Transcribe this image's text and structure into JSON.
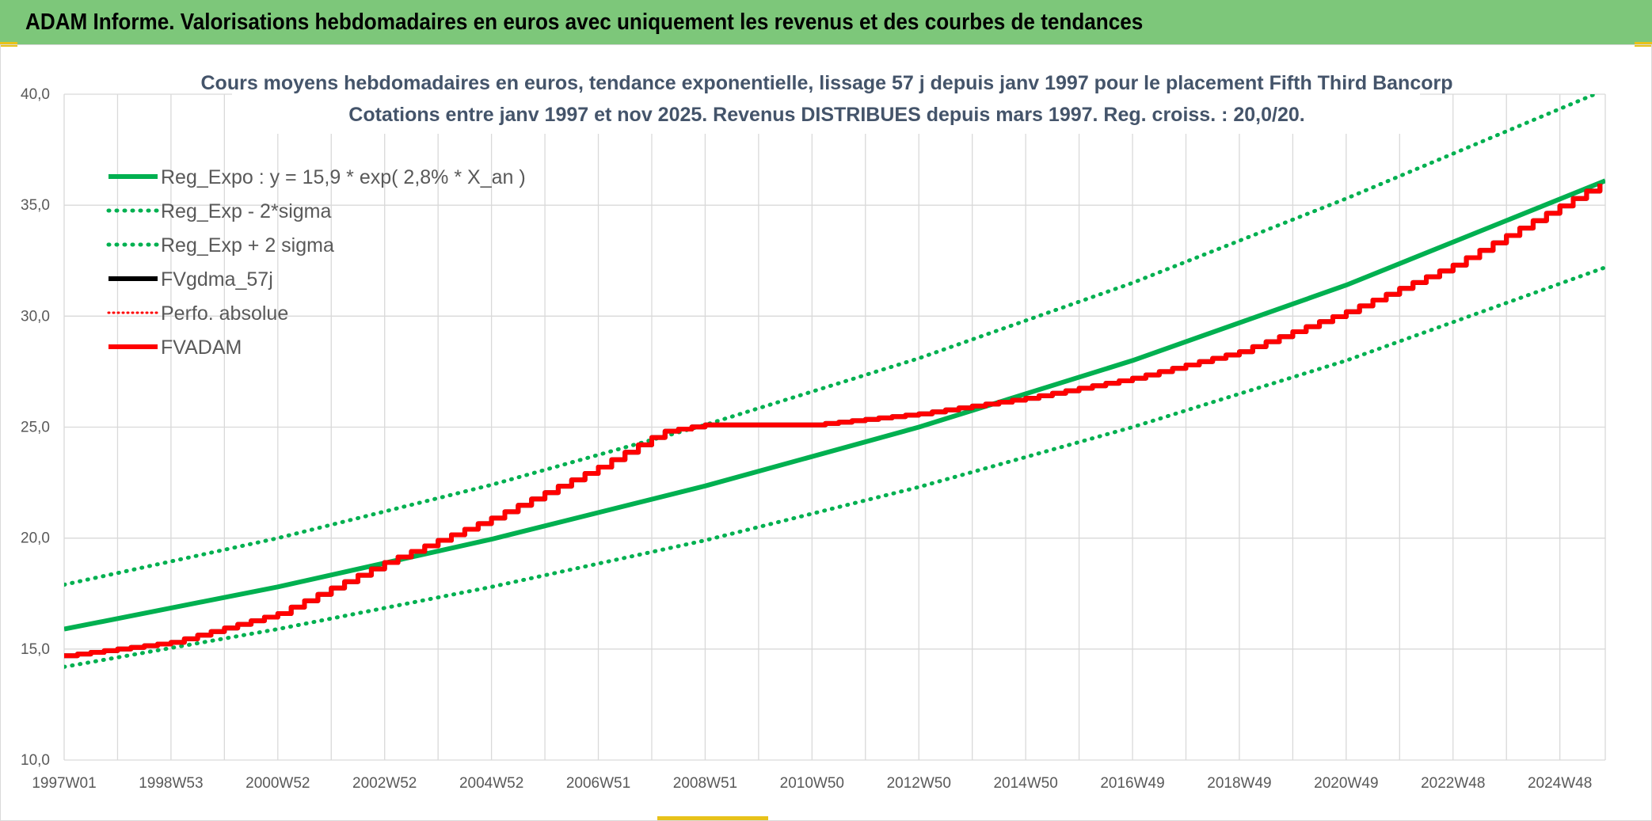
{
  "banner": {
    "title": "ADAM Informe. Valorisations hebdomadaires en euros avec uniquement les revenus et des courbes de tendances"
  },
  "colors": {
    "banner": "#7dc77a",
    "green": "#00b050",
    "red": "#ff0000",
    "black": "#000000",
    "grid": "#d9d9d9"
  },
  "chart_data": {
    "type": "line",
    "title_lines": [
      "Cours moyens hebdomadaires en euros, tendance exponentielle, lissage 57 j depuis janv 1997 pour le placement Fifth Third Bancorp",
      "Cotations entre janv 1997 et nov 2025. Revenus DISTRIBUES depuis mars 1997. Reg. croiss. : 20,0/20."
    ],
    "x_range": [
      1997.0,
      2025.85
    ],
    "ylim": [
      10,
      40
    ],
    "y_ticks": [
      "10,0",
      "15,0",
      "20,0",
      "25,0",
      "30,0",
      "35,0",
      "40,0"
    ],
    "x_ticks": [
      {
        "label": "1997W01",
        "x": 1997.0
      },
      {
        "label": "1998W53",
        "x": 1999.0
      },
      {
        "label": "2000W52",
        "x": 2001.0
      },
      {
        "label": "2002W52",
        "x": 2003.0
      },
      {
        "label": "2004W52",
        "x": 2005.0
      },
      {
        "label": "2006W51",
        "x": 2007.0
      },
      {
        "label": "2008W51",
        "x": 2009.0
      },
      {
        "label": "2010W50",
        "x": 2011.0
      },
      {
        "label": "2012W50",
        "x": 2013.0
      },
      {
        "label": "2014W50",
        "x": 2015.0
      },
      {
        "label": "2016W49",
        "x": 2017.0
      },
      {
        "label": "2018W49",
        "x": 2019.0
      },
      {
        "label": "2020W49",
        "x": 2021.0
      },
      {
        "label": "2022W48",
        "x": 2023.0
      },
      {
        "label": "2024W48",
        "x": 2025.0
      }
    ],
    "grid": true,
    "legend_position": "top-left",
    "series": [
      {
        "name": "Reg_Expo : y = 15,9 * exp( 2,8% *  X_an )",
        "color": "#00b050",
        "style": "solid",
        "x": [
          1997.0,
          2001.0,
          2005.0,
          2009.0,
          2013.0,
          2017.0,
          2021.0,
          2025.85
        ],
        "y": [
          15.9,
          17.8,
          19.95,
          22.35,
          25.0,
          28.0,
          31.4,
          36.1
        ]
      },
      {
        "name": "Reg_Exp - 2*sigma",
        "color": "#00b050",
        "style": "dotted",
        "x": [
          1997.0,
          2001.0,
          2005.0,
          2009.0,
          2013.0,
          2017.0,
          2021.0,
          2025.85
        ],
        "y": [
          14.2,
          15.9,
          17.8,
          19.9,
          22.3,
          25.0,
          28.0,
          32.2
        ]
      },
      {
        "name": "Reg_Exp + 2 sigma",
        "color": "#00b050",
        "style": "dotted",
        "x": [
          1997.0,
          2001.0,
          2005.0,
          2009.0,
          2013.0,
          2017.0,
          2021.0,
          2025.85
        ],
        "y": [
          17.9,
          20.0,
          22.4,
          25.1,
          28.1,
          31.5,
          35.3,
          40.2
        ]
      },
      {
        "name": "FVgdma_57j",
        "color": "#000000",
        "style": "solid",
        "x": [
          1997.0,
          1999.0,
          2001.0,
          2003.0,
          2005.0,
          2007.0,
          2008.2,
          2009.0,
          2011.0,
          2013.0,
          2015.0,
          2017.0,
          2019.0,
          2021.0,
          2023.0,
          2025.85
        ],
        "y": [
          14.7,
          15.3,
          16.6,
          18.9,
          20.9,
          23.2,
          24.8,
          25.1,
          25.1,
          25.6,
          26.3,
          27.2,
          28.4,
          30.2,
          32.3,
          36.1
        ]
      },
      {
        "name": "Perfo. absolue",
        "color": "#ff0000",
        "style": "dotted",
        "x": [
          1997.0,
          1999.0,
          2001.0,
          2003.0,
          2005.0,
          2007.0,
          2008.2,
          2009.0,
          2011.0,
          2013.0,
          2015.0,
          2017.0,
          2019.0,
          2021.0,
          2023.0,
          2025.85
        ],
        "y": [
          14.7,
          15.3,
          16.6,
          18.9,
          20.9,
          23.2,
          24.8,
          25.1,
          25.1,
          25.6,
          26.3,
          27.2,
          28.4,
          30.2,
          32.3,
          36.1
        ]
      },
      {
        "name": "FVADAM",
        "color": "#ff0000",
        "style": "solid",
        "x": [
          1997.0,
          1999.0,
          2001.0,
          2003.0,
          2005.0,
          2007.0,
          2008.2,
          2009.0,
          2011.0,
          2013.0,
          2015.0,
          2017.0,
          2019.0,
          2021.0,
          2023.0,
          2025.85
        ],
        "y": [
          14.7,
          15.3,
          16.6,
          18.9,
          20.9,
          23.2,
          24.8,
          25.1,
          25.1,
          25.6,
          26.3,
          27.2,
          28.4,
          30.2,
          32.3,
          36.1
        ]
      }
    ]
  }
}
